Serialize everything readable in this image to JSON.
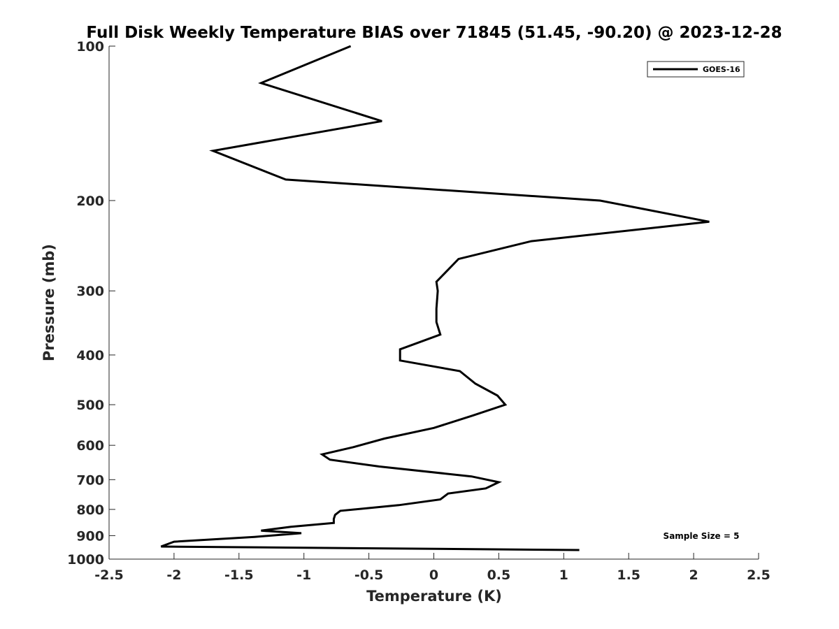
{
  "chart_data": {
    "type": "line",
    "title": "Full Disk Weekly Temperature BIAS over 71845 (51.45, -90.20) @ 2023-12-28",
    "xlabel": "Temperature (K)",
    "ylabel": "Pressure (mb)",
    "xlim": [
      -2.5,
      2.5
    ],
    "ylim": [
      100,
      1000
    ],
    "y_scale": "log",
    "y_direction": "reversed",
    "x_ticks": [
      -2.5,
      -2,
      -1.5,
      -1,
      -0.5,
      0,
      0.5,
      1,
      1.5,
      2,
      2.5
    ],
    "x_tick_labels": [
      "-2.5",
      "-2",
      "-1.5",
      "-1",
      "-0.5",
      "0",
      "0.5",
      "1",
      "1.5",
      "2",
      "2.5"
    ],
    "y_ticks": [
      100,
      200,
      300,
      400,
      500,
      600,
      700,
      800,
      900,
      1000
    ],
    "y_tick_labels": [
      "100",
      "200",
      "300",
      "400",
      "500",
      "600",
      "700",
      "800",
      "900",
      "1000"
    ],
    "grid": false,
    "legend_position": "top-right",
    "annotation": "Sample Size = 5",
    "series": [
      {
        "name": "GOES-16",
        "color": "#000000",
        "x": [
          -0.64,
          -1.33,
          -0.4,
          -1.7,
          -1.14,
          1.28,
          2.12,
          0.75,
          0.19,
          0.02,
          0.03,
          0.02,
          0.02,
          0.05,
          -0.26,
          -0.26,
          0.2,
          0.32,
          0.49,
          0.55,
          0.3,
          0.0,
          -0.38,
          -0.62,
          -0.86,
          -0.8,
          -0.42,
          0.29,
          0.5,
          0.4,
          0.11,
          0.05,
          -0.27,
          -0.72,
          -0.76,
          -0.77,
          -0.77,
          -1.1,
          -1.33,
          -1.02,
          -1.38,
          -2.0,
          -2.1,
          1.12
        ],
        "y": [
          100,
          118,
          140,
          160,
          182,
          200,
          220,
          240,
          260,
          288,
          300,
          325,
          345,
          365,
          390,
          410,
          430,
          455,
          480,
          500,
          525,
          555,
          582,
          605,
          625,
          640,
          660,
          690,
          708,
          728,
          745,
          765,
          785,
          805,
          820,
          835,
          850,
          865,
          880,
          890,
          905,
          925,
          945,
          960
        ]
      }
    ]
  }
}
